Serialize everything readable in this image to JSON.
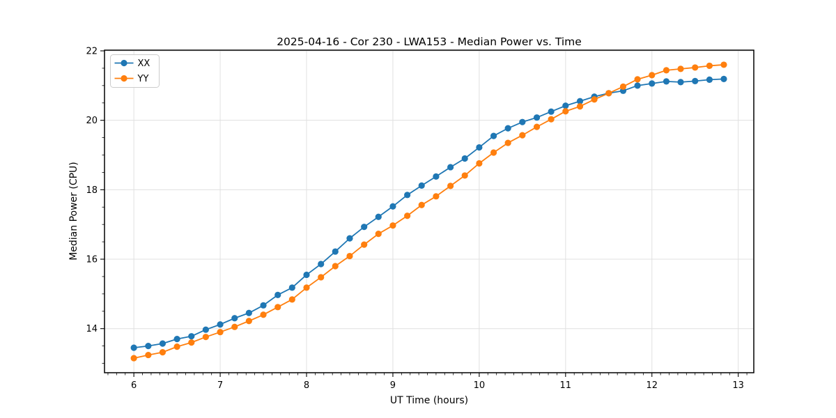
{
  "chart_data": {
    "type": "line",
    "title": "2025-04-16 - Cor 230 - LWA153 - Median Power vs. Time",
    "xlabel": "UT Time (hours)",
    "ylabel": "Median Power (CPU)",
    "xlim": [
      5.66,
      13.18
    ],
    "ylim": [
      12.73,
      22.02
    ],
    "x_major_ticks": [
      6,
      7,
      8,
      9,
      10,
      11,
      12,
      13
    ],
    "y_major_ticks": [
      14,
      16,
      18,
      20,
      22
    ],
    "x_minor_step": 0.1,
    "y_minor_step": 0.5,
    "grid": true,
    "grid_color": "#e0e0e0",
    "legend_position": "upper-left",
    "x": [
      6.0,
      6.167,
      6.333,
      6.5,
      6.667,
      6.833,
      7.0,
      7.167,
      7.333,
      7.5,
      7.667,
      7.833,
      8.0,
      8.167,
      8.333,
      8.5,
      8.667,
      8.833,
      9.0,
      9.167,
      9.333,
      9.5,
      9.667,
      9.833,
      10.0,
      10.167,
      10.333,
      10.5,
      10.667,
      10.833,
      11.0,
      11.167,
      11.333,
      11.5,
      11.667,
      11.833,
      12.0,
      12.167,
      12.333,
      12.5,
      12.667,
      12.833
    ],
    "series": [
      {
        "name": "XX",
        "color": "#1f77b4",
        "values": [
          13.45,
          13.5,
          13.57,
          13.7,
          13.78,
          13.97,
          14.12,
          14.3,
          14.45,
          14.67,
          14.97,
          15.18,
          15.55,
          15.86,
          16.22,
          16.6,
          16.93,
          17.22,
          17.52,
          17.85,
          18.12,
          18.38,
          18.65,
          18.9,
          19.22,
          19.55,
          19.77,
          19.95,
          20.08,
          20.25,
          20.42,
          20.55,
          20.68,
          20.78,
          20.85,
          21.0,
          21.06,
          21.12,
          21.1,
          21.13,
          21.17,
          21.19
        ]
      },
      {
        "name": "YY",
        "color": "#ff7f0e",
        "values": [
          13.15,
          13.24,
          13.32,
          13.48,
          13.6,
          13.76,
          13.9,
          14.05,
          14.22,
          14.4,
          14.62,
          14.84,
          15.18,
          15.48,
          15.8,
          16.09,
          16.42,
          16.73,
          16.97,
          17.25,
          17.56,
          17.81,
          18.11,
          18.41,
          18.76,
          19.07,
          19.35,
          19.57,
          19.81,
          20.03,
          20.26,
          20.4,
          20.6,
          20.78,
          20.97,
          21.18,
          21.3,
          21.44,
          21.48,
          21.52,
          21.57,
          21.6
        ]
      }
    ]
  }
}
